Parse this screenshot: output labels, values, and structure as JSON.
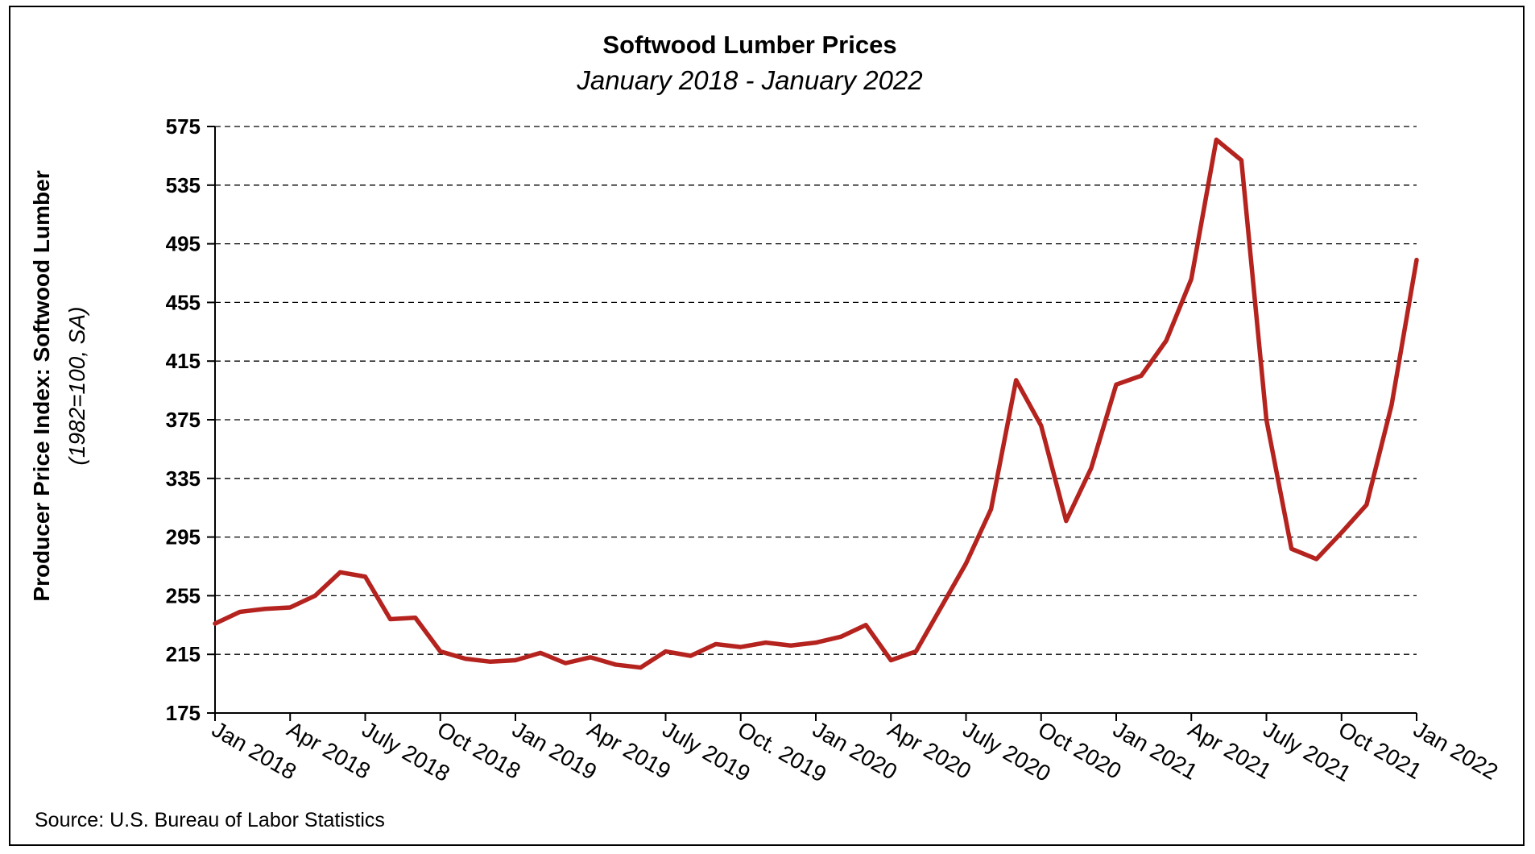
{
  "chart_data": {
    "type": "line",
    "title": "Softwood Lumber Prices",
    "subtitle": "January 2018 - January 2022",
    "ylabel": "Producer Price Index: Softwood Lumber",
    "ylabel_sub": "(1982=100, SA)",
    "source": "Source: U.S. Bureau of Labor Statistics",
    "ylim": [
      175,
      575
    ],
    "yticks": [
      175,
      215,
      255,
      295,
      335,
      375,
      415,
      455,
      495,
      535,
      575
    ],
    "grid": "horizontal dashed",
    "line_color": "#b5231f",
    "x_tick_labels": [
      {
        "index": 0,
        "label": "Jan 2018"
      },
      {
        "index": 3,
        "label": "Apr 2018"
      },
      {
        "index": 6,
        "label": "July 2018"
      },
      {
        "index": 9,
        "label": "Oct 2018"
      },
      {
        "index": 12,
        "label": "Jan 2019"
      },
      {
        "index": 15,
        "label": "Apr 2019"
      },
      {
        "index": 18,
        "label": "July 2019"
      },
      {
        "index": 21,
        "label": "Oct. 2019"
      },
      {
        "index": 24,
        "label": "Jan 2020"
      },
      {
        "index": 27,
        "label": "Apr 2020"
      },
      {
        "index": 30,
        "label": "July 2020"
      },
      {
        "index": 33,
        "label": "Oct 2020"
      },
      {
        "index": 36,
        "label": "Jan 2021"
      },
      {
        "index": 39,
        "label": "Apr 2021"
      },
      {
        "index": 42,
        "label": "July 2021"
      },
      {
        "index": 45,
        "label": "Oct 2021"
      },
      {
        "index": 48,
        "label": "Jan 2022"
      }
    ],
    "series": [
      {
        "values": [
          236,
          244,
          246,
          247,
          255,
          271,
          268,
          239,
          240,
          217,
          212,
          210,
          211,
          216,
          209,
          213,
          208,
          206,
          217,
          214,
          222,
          220,
          223,
          221,
          223,
          227,
          235,
          211,
          217,
          247,
          277,
          314,
          402,
          371,
          306,
          342,
          399,
          405,
          429,
          471,
          566,
          552,
          375,
          287,
          280,
          298,
          317,
          385,
          484
        ]
      }
    ]
  }
}
